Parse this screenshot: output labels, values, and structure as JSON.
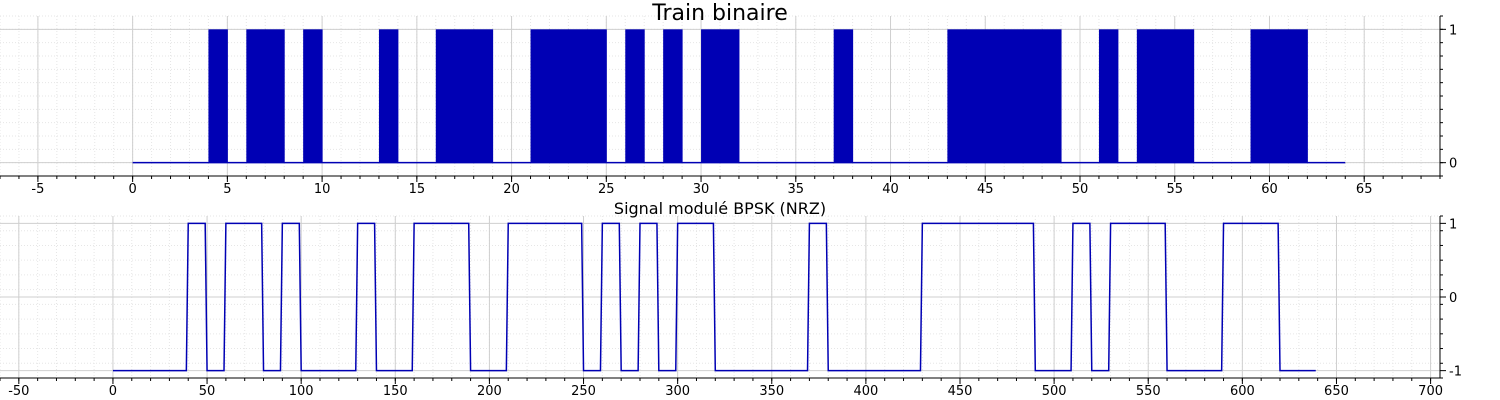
{
  "chart_data": [
    {
      "type": "bar",
      "title": "Train binaire",
      "xlabel": "",
      "ylabel": "",
      "xlim": [
        -7,
        69
      ],
      "ylim": [
        -0.1,
        1.1
      ],
      "x_ticks": [
        -5,
        0,
        5,
        10,
        15,
        20,
        25,
        30,
        35,
        40,
        45,
        50,
        55,
        60,
        65
      ],
      "y_ticks": [
        0,
        1
      ],
      "grid": true,
      "y_axis_side": "right",
      "color": "#0000b4",
      "bits": [
        0,
        0,
        0,
        0,
        1,
        0,
        1,
        1,
        0,
        1,
        0,
        0,
        0,
        1,
        0,
        0,
        1,
        1,
        1,
        0,
        0,
        1,
        1,
        1,
        1,
        0,
        1,
        0,
        1,
        0,
        1,
        1,
        0,
        0,
        0,
        0,
        0,
        1,
        0,
        0,
        0,
        0,
        0,
        1,
        1,
        1,
        1,
        1,
        1,
        0,
        0,
        1,
        0,
        1,
        1,
        1,
        0,
        0,
        0,
        1,
        1,
        1,
        0,
        0
      ]
    },
    {
      "type": "line",
      "title": "Signal modulé BPSK (NRZ)",
      "xlabel": "",
      "ylabel": "",
      "xlim": [
        -60,
        705
      ],
      "ylim": [
        -1.1,
        1.1
      ],
      "x_ticks": [
        -50,
        0,
        50,
        100,
        150,
        200,
        250,
        300,
        350,
        400,
        450,
        500,
        550,
        600,
        650,
        700
      ],
      "y_ticks": [
        -1,
        0,
        1
      ],
      "grid": true,
      "y_axis_side": "right",
      "color": "#0000b4",
      "samples_per_bit": 10,
      "x_end": 640,
      "levels": [
        -1,
        -1,
        -1,
        -1,
        1,
        -1,
        1,
        1,
        -1,
        1,
        -1,
        -1,
        -1,
        1,
        -1,
        -1,
        1,
        1,
        1,
        -1,
        -1,
        1,
        1,
        1,
        1,
        -1,
        1,
        -1,
        1,
        -1,
        1,
        1,
        -1,
        -1,
        -1,
        -1,
        -1,
        1,
        -1,
        -1,
        -1,
        -1,
        -1,
        1,
        1,
        1,
        1,
        1,
        1,
        -1,
        -1,
        1,
        -1,
        1,
        1,
        1,
        -1,
        -1,
        -1,
        1,
        1,
        1,
        -1,
        -1
      ]
    }
  ]
}
